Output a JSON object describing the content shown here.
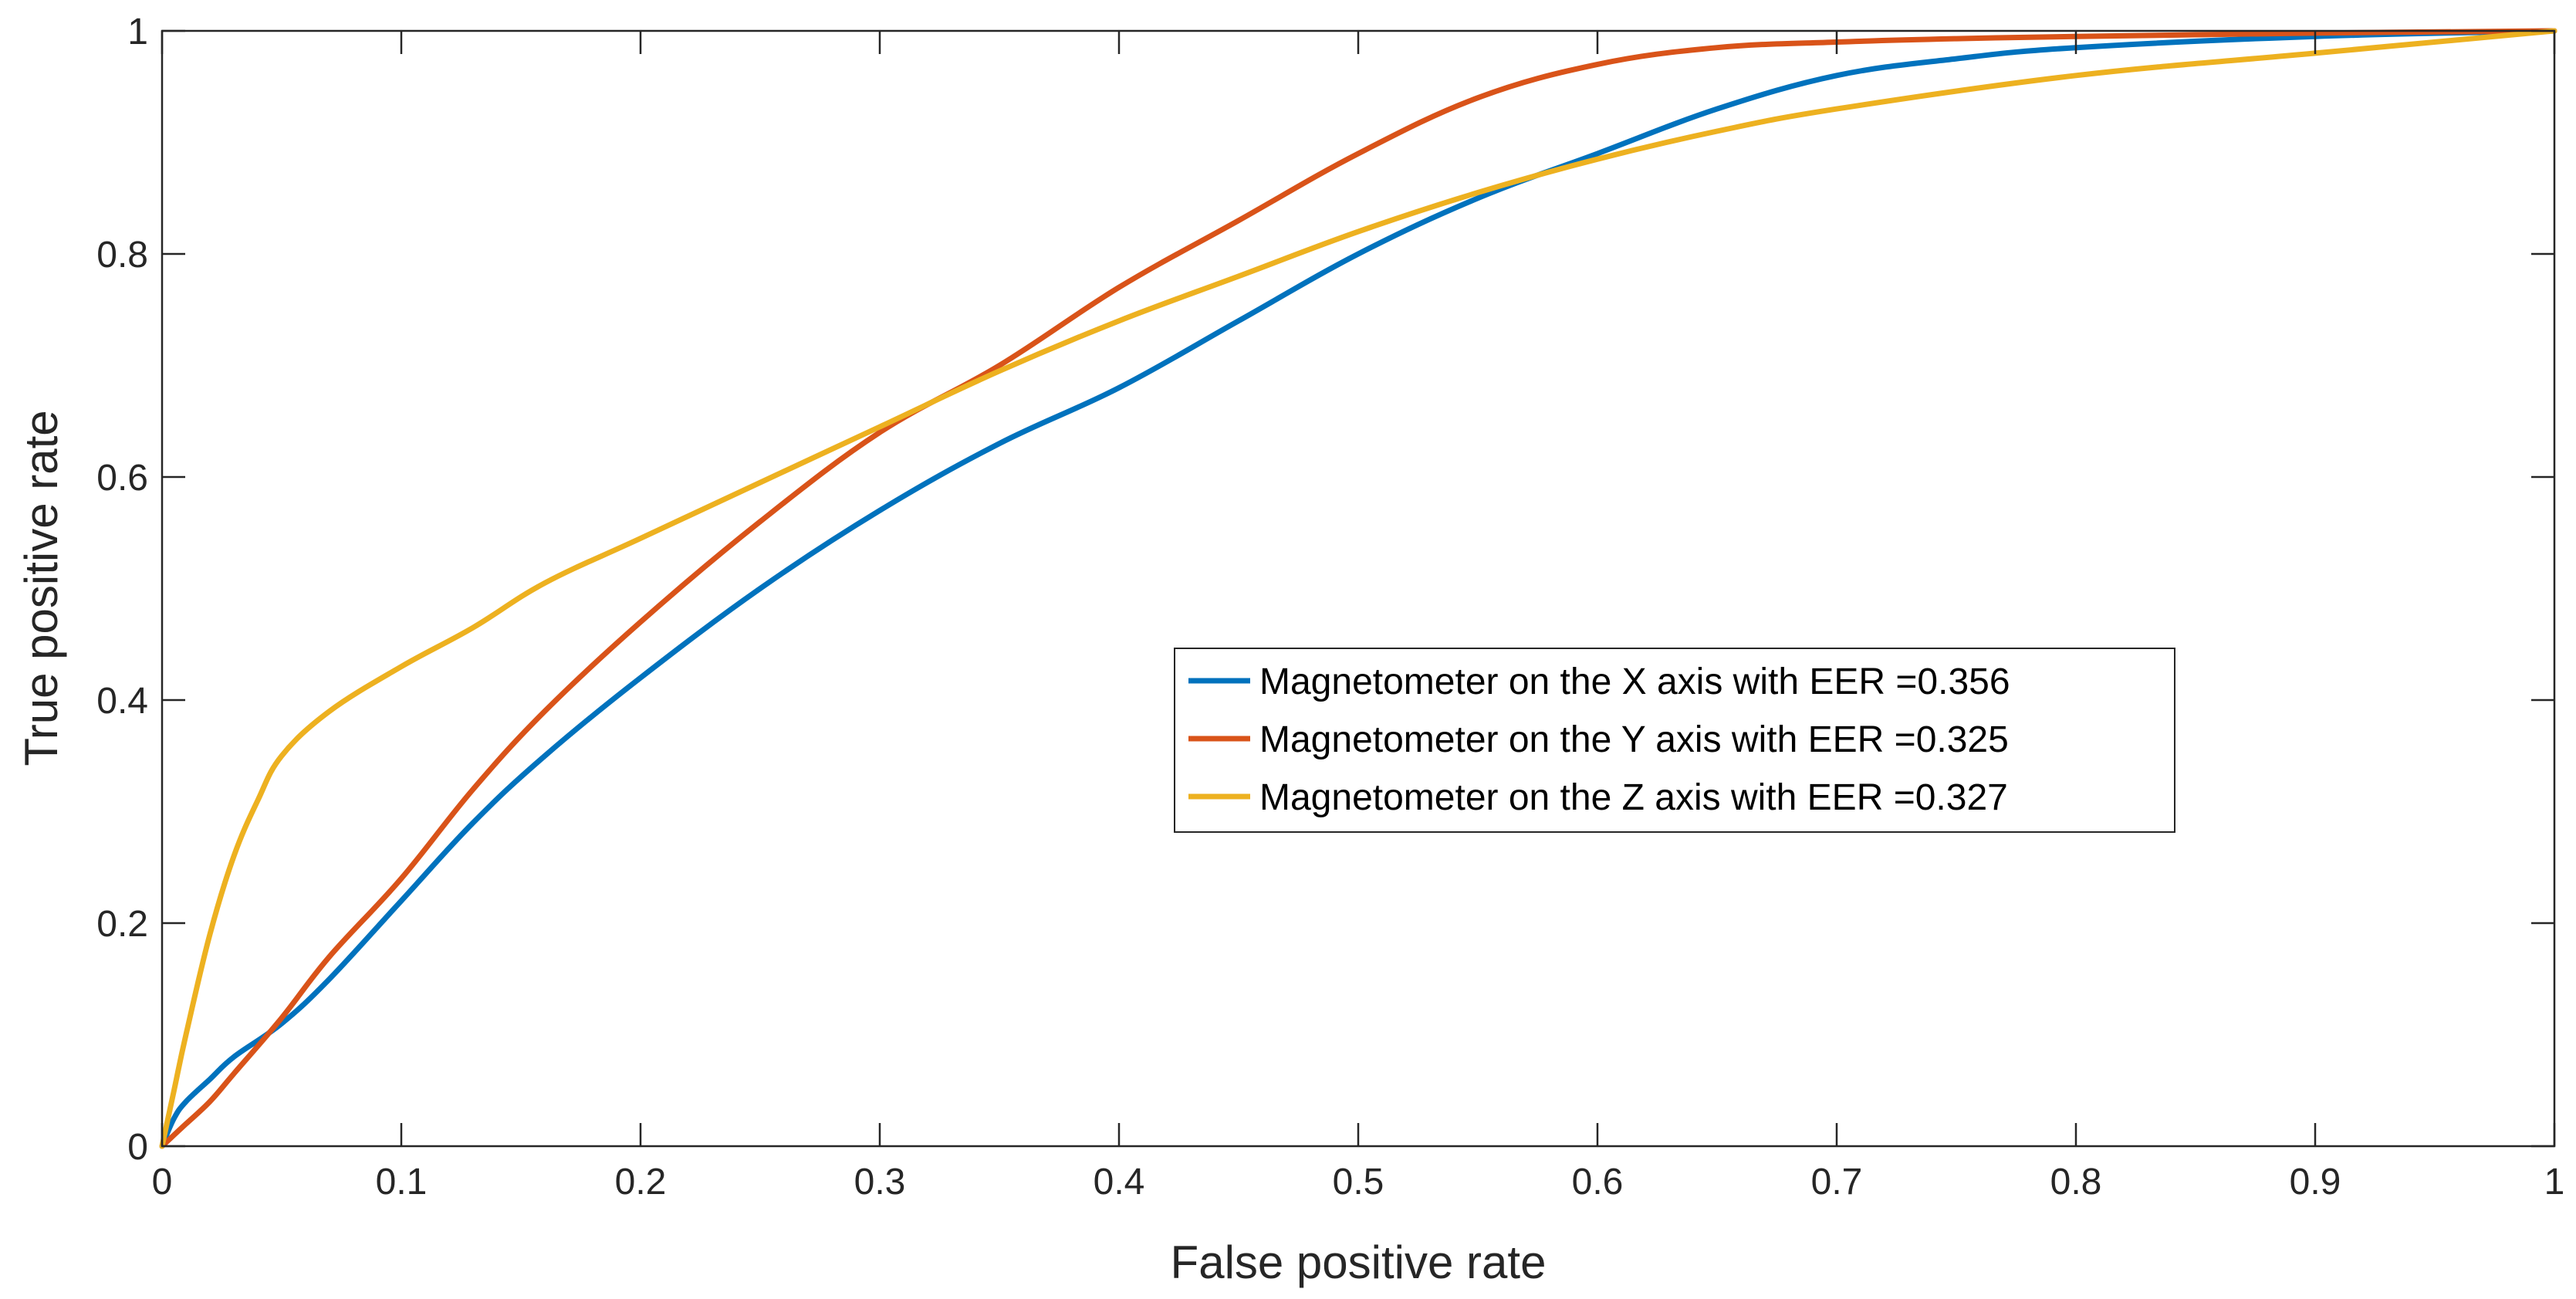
{
  "chart_data": {
    "type": "line",
    "title": "",
    "xlabel": "False positive rate",
    "ylabel": "True positive rate",
    "xlim": [
      0,
      1
    ],
    "ylim": [
      0,
      1
    ],
    "grid": false,
    "legend_position": "center-right",
    "xticks": [
      0,
      0.1,
      0.2,
      0.3,
      0.4,
      0.5,
      0.6,
      0.7,
      0.8,
      0.9,
      1
    ],
    "xtick_labels": [
      "0",
      "0.1",
      "0.2",
      "0.3",
      "0.4",
      "0.5",
      "0.6",
      "0.7",
      "0.8",
      "0.9",
      "1"
    ],
    "yticks": [
      0,
      0.2,
      0.4,
      0.6,
      0.8,
      1
    ],
    "ytick_labels": [
      "0",
      "0.2",
      "0.4",
      "0.6",
      "0.8",
      "1"
    ],
    "series": [
      {
        "name": "Magnetometer on the X axis with EER =0.356",
        "color": "#0072BD",
        "x": [
          0,
          0.005,
          0.01,
          0.02,
          0.03,
          0.05,
          0.07,
          0.1,
          0.13,
          0.16,
          0.2,
          0.25,
          0.3,
          0.35,
          0.4,
          0.45,
          0.5,
          0.55,
          0.6,
          0.65,
          0.7,
          0.75,
          0.8,
          0.9,
          1
        ],
        "y": [
          0,
          0.025,
          0.04,
          0.06,
          0.08,
          0.11,
          0.15,
          0.22,
          0.29,
          0.35,
          0.42,
          0.5,
          0.57,
          0.63,
          0.68,
          0.74,
          0.8,
          0.85,
          0.89,
          0.93,
          0.96,
          0.975,
          0.985,
          0.995,
          1
        ]
      },
      {
        "name": "Magnetometer on the Y axis with EER =0.325",
        "color": "#D95319",
        "x": [
          0,
          0.005,
          0.01,
          0.02,
          0.03,
          0.05,
          0.07,
          0.1,
          0.13,
          0.16,
          0.2,
          0.25,
          0.3,
          0.35,
          0.4,
          0.45,
          0.5,
          0.55,
          0.6,
          0.65,
          0.7,
          0.75,
          0.8,
          0.9,
          1
        ],
        "y": [
          0,
          0.01,
          0.02,
          0.04,
          0.065,
          0.115,
          0.17,
          0.24,
          0.32,
          0.39,
          0.47,
          0.56,
          0.64,
          0.7,
          0.77,
          0.83,
          0.89,
          0.94,
          0.97,
          0.985,
          0.99,
          0.993,
          0.995,
          0.998,
          1
        ]
      },
      {
        "name": "Magnetometer on the Z axis with EER =0.327",
        "color": "#EDB120",
        "x": [
          0,
          0.005,
          0.01,
          0.02,
          0.03,
          0.04,
          0.05,
          0.07,
          0.1,
          0.13,
          0.16,
          0.2,
          0.25,
          0.3,
          0.35,
          0.4,
          0.45,
          0.5,
          0.55,
          0.6,
          0.65,
          0.7,
          0.8,
          0.9,
          1
        ],
        "y": [
          0,
          0.05,
          0.1,
          0.19,
          0.26,
          0.31,
          0.35,
          0.39,
          0.43,
          0.465,
          0.505,
          0.545,
          0.595,
          0.645,
          0.695,
          0.74,
          0.78,
          0.82,
          0.855,
          0.885,
          0.91,
          0.93,
          0.96,
          0.98,
          1
        ]
      }
    ]
  }
}
